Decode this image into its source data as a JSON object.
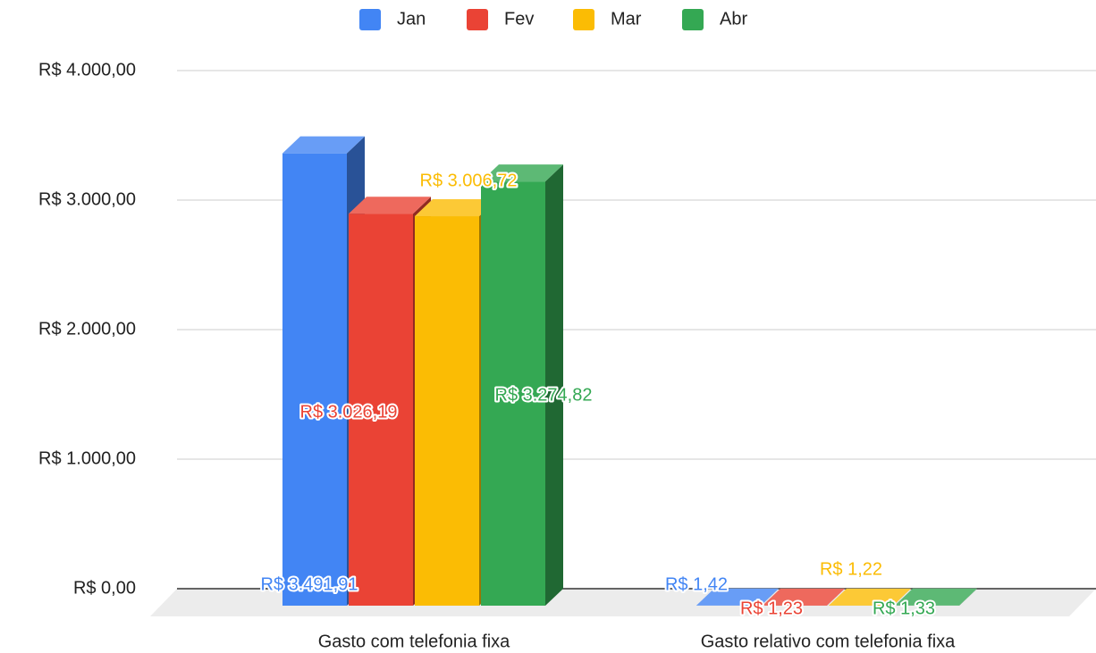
{
  "chart_data": {
    "type": "bar3d",
    "categories": [
      "Gasto com telefonia fixa",
      "Gasto relativo com telefonia fixa"
    ],
    "series": [
      {
        "name": "Jan",
        "color": "#4285f4",
        "values": [
          3491.91,
          1.42
        ],
        "value_labels": [
          "R$ 3.491,91",
          "R$ 1,42"
        ]
      },
      {
        "name": "Fev",
        "color": "#ea4335",
        "values": [
          3026.19,
          1.23
        ],
        "value_labels": [
          "R$ 3.026,19",
          "R$ 1,23"
        ]
      },
      {
        "name": "Mar",
        "color": "#fbbc04",
        "values": [
          3006.72,
          1.22
        ],
        "value_labels": [
          "R$ 3.006,72",
          "R$ 1,22"
        ]
      },
      {
        "name": "Abr",
        "color": "#34a853",
        "values": [
          3274.82,
          1.33
        ],
        "value_labels": [
          "R$ 3.274,82",
          "R$ 1,33"
        ]
      }
    ],
    "ylim": [
      0,
      4000
    ],
    "yticks": [
      {
        "value": 0,
        "label": "R$ 0,00"
      },
      {
        "value": 1000,
        "label": "R$ 1.000,00"
      },
      {
        "value": 2000,
        "label": "R$ 2.000,00"
      },
      {
        "value": 3000,
        "label": "R$ 3.000,00"
      },
      {
        "value": 4000,
        "label": "R$ 4.000,00"
      }
    ],
    "grid": true,
    "legend": "top"
  }
}
